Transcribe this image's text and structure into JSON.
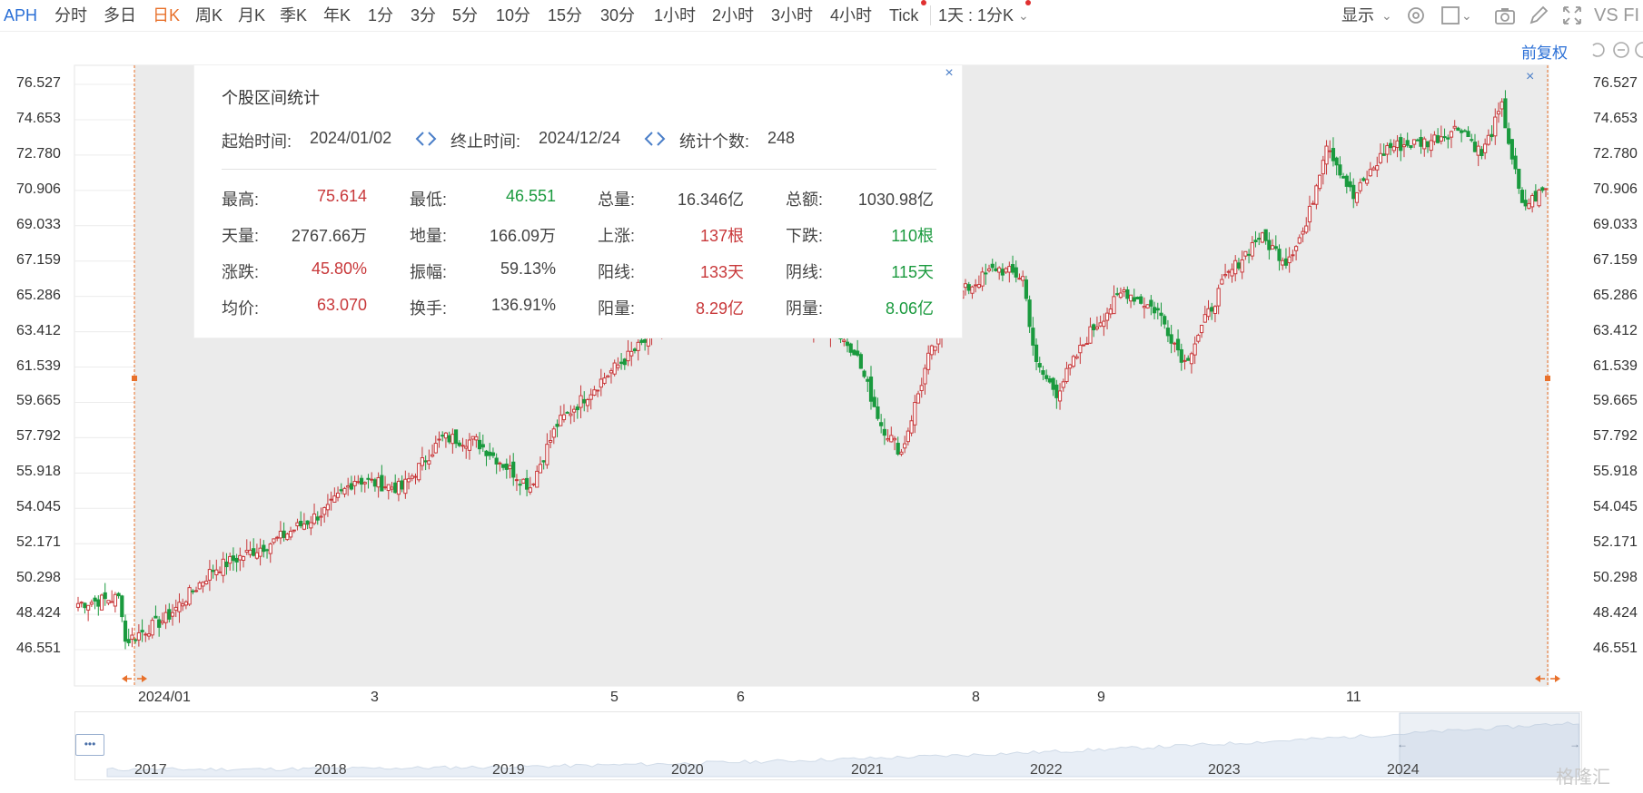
{
  "toolbar": {
    "symbol": "APH",
    "periods": [
      "分时",
      "多日",
      "日K",
      "周K",
      "月K",
      "季K",
      "年K",
      "1分",
      "3分",
      "5分",
      "10分",
      "15分",
      "30分",
      "1小时",
      "2小时",
      "3小时",
      "4小时",
      "Tick"
    ],
    "active_period": "日K",
    "interval_select": "1天 : 1分K",
    "display_label": "显示",
    "vs_label": "VS FI"
  },
  "adjust_label": "前复权",
  "stats": {
    "title": "个股区间统计",
    "start_label": "起始时间:",
    "start_value": "2024/01/02",
    "end_label": "终止时间:",
    "end_value": "2024/12/24",
    "count_label": "统计个数:",
    "count_value": "248",
    "close_glyph": "×",
    "rows": [
      [
        {
          "label": "最高:",
          "value": "75.614",
          "color": "red"
        },
        {
          "label": "最低:",
          "value": "46.551",
          "color": "green"
        },
        {
          "label": "总量:",
          "value": "16.346亿",
          "color": "dark"
        },
        {
          "label": "总额:",
          "value": "1030.98亿",
          "color": "dark"
        }
      ],
      [
        {
          "label": "天量:",
          "value": "2767.66万",
          "color": "dark"
        },
        {
          "label": "地量:",
          "value": "166.09万",
          "color": "dark"
        },
        {
          "label": "上涨:",
          "value": "137根",
          "color": "red"
        },
        {
          "label": "下跌:",
          "value": "110根",
          "color": "green"
        }
      ],
      [
        {
          "label": "涨跌:",
          "value": "45.80%",
          "color": "red"
        },
        {
          "label": "振幅:",
          "value": "59.13%",
          "color": "dark"
        },
        {
          "label": "阳线:",
          "value": "133天",
          "color": "red"
        },
        {
          "label": "阴线:",
          "value": "115天",
          "color": "green"
        }
      ],
      [
        {
          "label": "均价:",
          "value": "63.070",
          "color": "red"
        },
        {
          "label": "换手:",
          "value": "136.91%",
          "color": "dark"
        },
        {
          "label": "阳量:",
          "value": "8.29亿",
          "color": "red"
        },
        {
          "label": "阴量:",
          "value": "8.06亿",
          "color": "green"
        }
      ]
    ]
  },
  "navigator": {
    "years": [
      "2017",
      "2018",
      "2019",
      "2020",
      "2021",
      "2022",
      "2023",
      "2024"
    ],
    "menu_glyph": "•••"
  },
  "watermark": "格隆汇",
  "colors": {
    "up": "#c8383a",
    "down": "#1a9a3e",
    "accent": "#e8702a",
    "link": "#2a6fd6",
    "selection_bg": "#ebebeb"
  },
  "chart_data": {
    "type": "candlestick",
    "title": "",
    "y_ticks": [
      "76.527",
      "74.653",
      "72.780",
      "70.906",
      "69.033",
      "67.159",
      "65.286",
      "63.412",
      "61.539",
      "59.665",
      "57.792",
      "55.918",
      "54.045",
      "52.171",
      "50.298",
      "48.424",
      "46.551"
    ],
    "ylim": [
      46.551,
      76.527
    ],
    "x_ticks": [
      "2024/01",
      "3",
      "5",
      "6",
      "8",
      "9",
      "11"
    ],
    "selected_range": [
      "2024/01/02",
      "2024/12/24"
    ],
    "grid": true,
    "anchors": [
      {
        "i": 0,
        "close": 49.0
      },
      {
        "i": 12,
        "close": 49.3
      },
      {
        "i": 13,
        "close": 48.6
      },
      {
        "i": 14,
        "close": 47.0
      },
      {
        "i": 26,
        "close": 48.2
      },
      {
        "i": 40,
        "close": 50.8
      },
      {
        "i": 58,
        "close": 52.3
      },
      {
        "i": 74,
        "close": 54.0
      },
      {
        "i": 82,
        "close": 55.6
      },
      {
        "i": 96,
        "close": 55.1
      },
      {
        "i": 108,
        "close": 57.8
      },
      {
        "i": 118,
        "close": 57.6
      },
      {
        "i": 134,
        "close": 55.2
      },
      {
        "i": 142,
        "close": 58.5
      },
      {
        "i": 156,
        "close": 61.0
      },
      {
        "i": 172,
        "close": 63.5
      },
      {
        "i": 196,
        "close": 65.0
      },
      {
        "i": 224,
        "close": 63.4
      },
      {
        "i": 230,
        "close": 62.5
      },
      {
        "i": 238,
        "close": 58.5
      },
      {
        "i": 244,
        "close": 57.0
      },
      {
        "i": 252,
        "close": 62.0
      },
      {
        "i": 262,
        "close": 65.5
      },
      {
        "i": 272,
        "close": 66.8
      },
      {
        "i": 280,
        "close": 66.3
      },
      {
        "i": 284,
        "close": 61.6
      },
      {
        "i": 290,
        "close": 60.2
      },
      {
        "i": 300,
        "close": 63.4
      },
      {
        "i": 310,
        "close": 65.6
      },
      {
        "i": 320,
        "close": 64.5
      },
      {
        "i": 328,
        "close": 61.8
      },
      {
        "i": 340,
        "close": 66.2
      },
      {
        "i": 350,
        "close": 68.5
      },
      {
        "i": 358,
        "close": 67.2
      },
      {
        "i": 364,
        "close": 69.0
      },
      {
        "i": 370,
        "close": 73.5
      },
      {
        "i": 378,
        "close": 70.5
      },
      {
        "i": 388,
        "close": 73.2
      },
      {
        "i": 400,
        "close": 73.5
      },
      {
        "i": 410,
        "close": 74.3
      },
      {
        "i": 416,
        "close": 72.8
      },
      {
        "i": 422,
        "close": 75.3
      },
      {
        "i": 428,
        "close": 70.0
      },
      {
        "i": 435,
        "close": 71.0
      }
    ]
  }
}
